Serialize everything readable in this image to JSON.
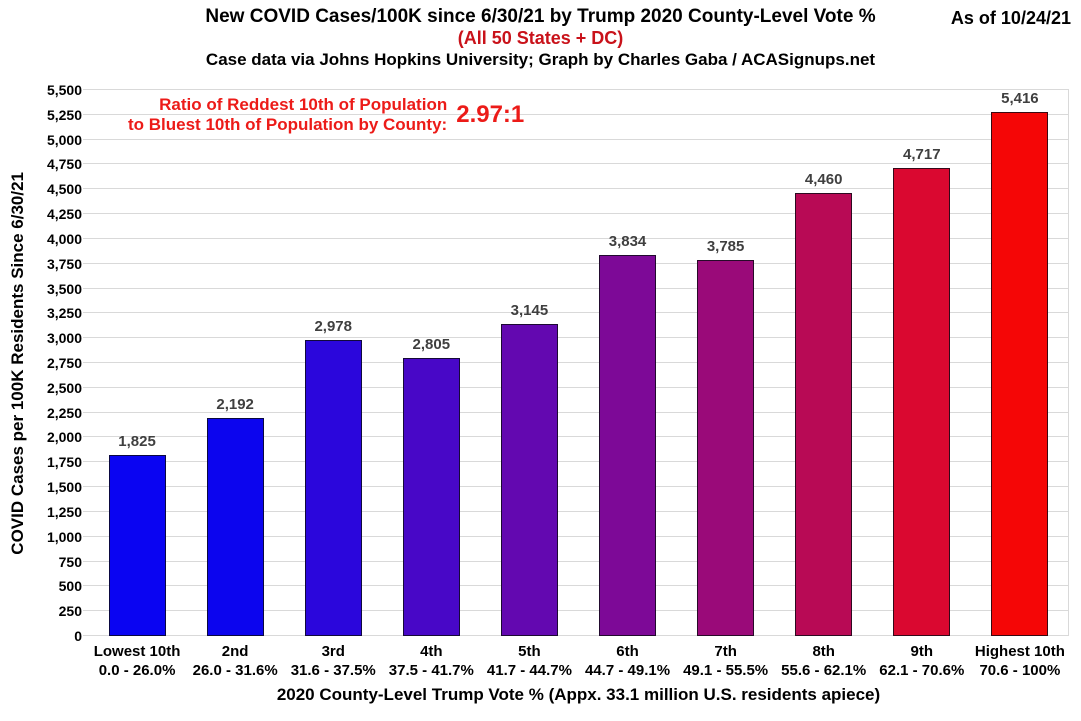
{
  "header": {
    "title": "New COVID Cases/100K since 6/30/21 by Trump 2020 County-Level Vote %",
    "subtitle": "(All 50 States + DC)",
    "credit": "Case data via Johns Hopkins University; Graph by Charles Gaba / ACASignups.net",
    "as_of": "As of 10/24/21"
  },
  "annotation": {
    "line1": "Ratio of Reddest 10th of Population",
    "line2": "to Bluest 10th of Population by County:",
    "ratio": "2.97:1"
  },
  "colors": {
    "subtitle_red": "#C9121A",
    "annotation_red": "#EC1B18",
    "value_label": "#3F3F3F",
    "gridline": "#D9D9D9"
  },
  "chart_data": {
    "type": "bar",
    "title": "New COVID Cases/100K since 6/30/21 by Trump 2020 County-Level Vote %",
    "subtitle": "(All 50 States + DC)",
    "credit": "Case data via Johns Hopkins University; Graph by Charles Gaba / ACASignups.net",
    "as_of": "As of 10/24/21",
    "annotation": "Ratio of Reddest 10th of Population to Bluest 10th of Population by County: 2.97:1",
    "categories": [
      "Lowest 10th",
      "2nd",
      "3rd",
      "4th",
      "5th",
      "6th",
      "7th",
      "8th",
      "9th",
      "Highest 10th"
    ],
    "category_ranges": [
      "0.0 - 26.0%",
      "26.0 - 31.6%",
      "31.6 - 37.5%",
      "37.5 - 41.7%",
      "41.7 - 44.7%",
      "44.7 - 49.1%",
      "49.1 - 55.5%",
      "55.6 - 62.1%",
      "62.1 - 70.6%",
      "70.6 - 100%"
    ],
    "values": [
      1825,
      2192,
      2978,
      2805,
      3145,
      3834,
      3785,
      4460,
      4717,
      5416
    ],
    "value_labels": [
      "1,825",
      "2,192",
      "2,978",
      "2,805",
      "3,145",
      "3,834",
      "3,785",
      "4,460",
      "4,717",
      "5,416"
    ],
    "bar_colors": [
      "#0A04F2",
      "#0C05EE",
      "#2B06DC",
      "#4807C7",
      "#6308B0",
      "#7D0997",
      "#9A0A79",
      "#B80A55",
      "#DA0830",
      "#F50606"
    ],
    "xlabel": "2020 County-Level Trump Vote % (Appx. 33.1 million U.S. residents apiece)",
    "ylabel": "COVID Cases per 100K Residents Since 6/30/21",
    "ylim": [
      0,
      5500
    ],
    "ytick_step": 250,
    "grid": true,
    "legend": false
  }
}
